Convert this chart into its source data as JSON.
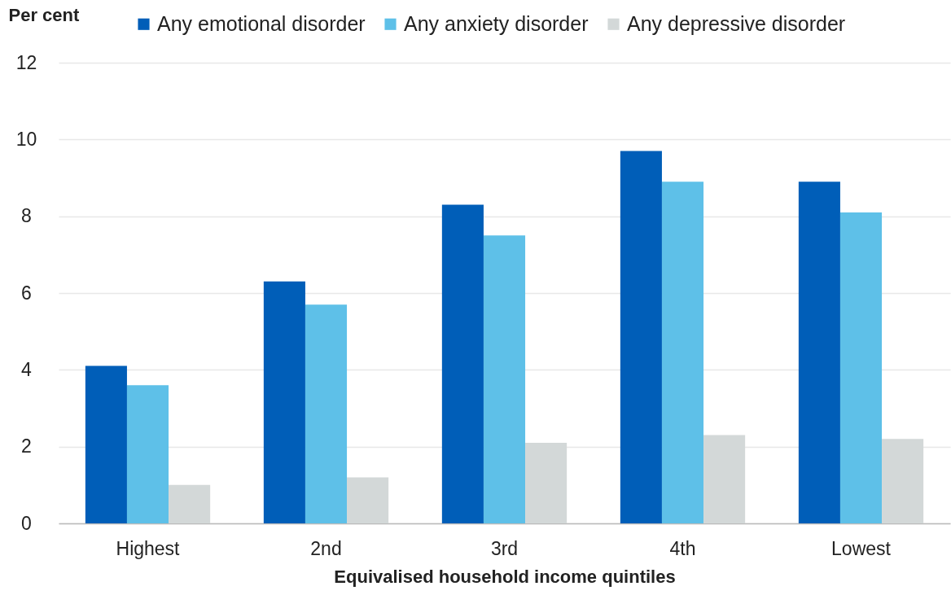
{
  "chart_data": {
    "type": "bar",
    "xlabel": "Equivalised household income quintiles",
    "ylabel": "Per cent",
    "categories": [
      "Highest",
      "2nd",
      "3rd",
      "4th",
      "Lowest"
    ],
    "series": [
      {
        "name": "Any emotional disorder",
        "color": "#005eb8",
        "values": [
          4.1,
          6.3,
          8.3,
          9.7,
          8.9
        ]
      },
      {
        "name": "Any anxiety disorder",
        "color": "#5ec0e8",
        "values": [
          3.6,
          5.7,
          7.5,
          8.9,
          8.1
        ]
      },
      {
        "name": "Any depressive disorder",
        "color": "#d3d8d8",
        "values": [
          1.0,
          1.2,
          2.1,
          2.3,
          2.2
        ]
      }
    ],
    "ylim": [
      0,
      12
    ],
    "yticks": [
      0,
      2,
      4,
      6,
      8,
      10,
      12
    ],
    "grid": "y",
    "legend": "top"
  }
}
